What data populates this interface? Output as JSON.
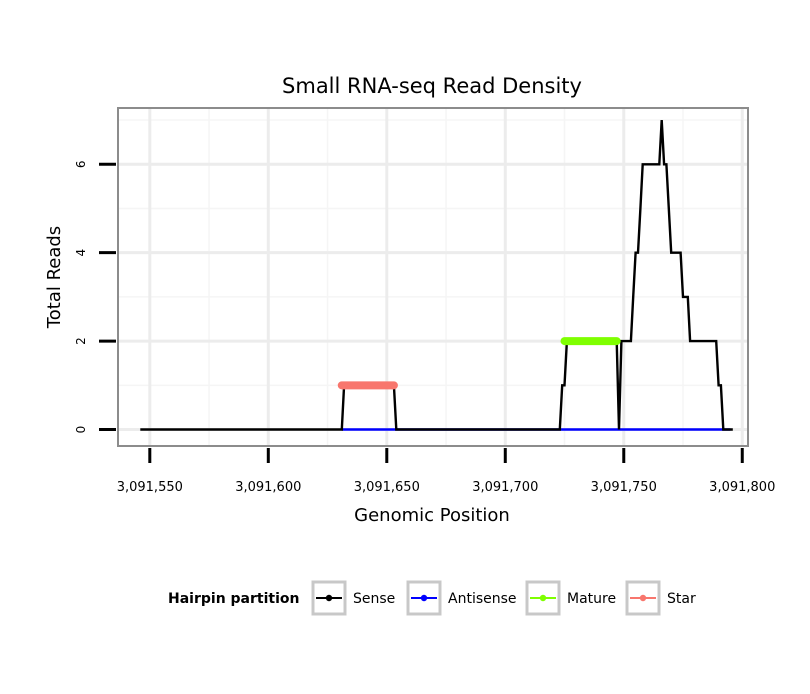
{
  "chart_data": {
    "type": "line",
    "title": "Small RNA-seq Read Density",
    "xlabel": "Genomic Position",
    "ylabel": "Total Reads",
    "xlim": [
      3091537,
      3091802
    ],
    "ylim": [
      -0.35,
      7.25
    ],
    "x_ticks": [
      3091550,
      3091600,
      3091650,
      3091700,
      3091750,
      3091800
    ],
    "x_tick_labels": [
      "3,091,550",
      "3,091,600",
      "3,091,650",
      "3,091,700",
      "3,091,750",
      "3,091,800"
    ],
    "y_ticks": [
      0,
      2,
      4,
      6
    ],
    "y_tick_labels": [
      "0",
      "2",
      "4",
      "6"
    ],
    "grid": true,
    "legend": {
      "title": "Hairpin partition",
      "position": "bottom",
      "entries": [
        "Sense",
        "Antisense",
        "Mature",
        "Star"
      ]
    },
    "series": [
      {
        "name": "Sense",
        "color": "#000000",
        "style": "step",
        "x": [
          3091546,
          3091631,
          3091632,
          3091653,
          3091654,
          3091723,
          3091724,
          3091725,
          3091726,
          3091747,
          3091748,
          3091749,
          3091750,
          3091753,
          3091754,
          3091755,
          3091756,
          3091757,
          3091758,
          3091759,
          3091760,
          3091764,
          3091765,
          3091766,
          3091767,
          3091768,
          3091769,
          3091770,
          3091771,
          3091772,
          3091773,
          3091774,
          3091775,
          3091776,
          3091777,
          3091778,
          3091779,
          3091780,
          3091781,
          3091782,
          3091783,
          3091784,
          3091785,
          3091786,
          3091787,
          3091788,
          3091789,
          3091790,
          3091791,
          3091792,
          3091793,
          3091794,
          3091795,
          3091796
        ],
        "y": [
          0,
          0,
          1,
          1,
          0,
          0,
          1,
          1,
          2,
          2,
          0,
          2,
          2,
          2,
          3,
          4,
          4,
          5,
          6,
          6,
          6,
          6,
          6,
          7,
          6,
          6,
          5,
          4,
          4,
          4,
          4,
          4,
          3,
          3,
          3,
          2,
          2,
          2,
          2,
          2,
          2,
          2,
          2,
          2,
          2,
          2,
          2,
          1,
          1,
          0,
          0,
          0,
          0,
          0
        ]
      },
      {
        "name": "Antisense",
        "color": "#0000ff",
        "style": "line",
        "x": [
          3091631,
          3091795
        ],
        "y": [
          0,
          0
        ]
      },
      {
        "name": "Mature",
        "color": "#7fff00",
        "style": "segment",
        "x": [
          3091725,
          3091747
        ],
        "y": [
          2,
          2
        ]
      },
      {
        "name": "Star",
        "color": "#f8766d",
        "style": "segment",
        "x": [
          3091631,
          3091653
        ],
        "y": [
          1,
          1
        ]
      }
    ]
  }
}
